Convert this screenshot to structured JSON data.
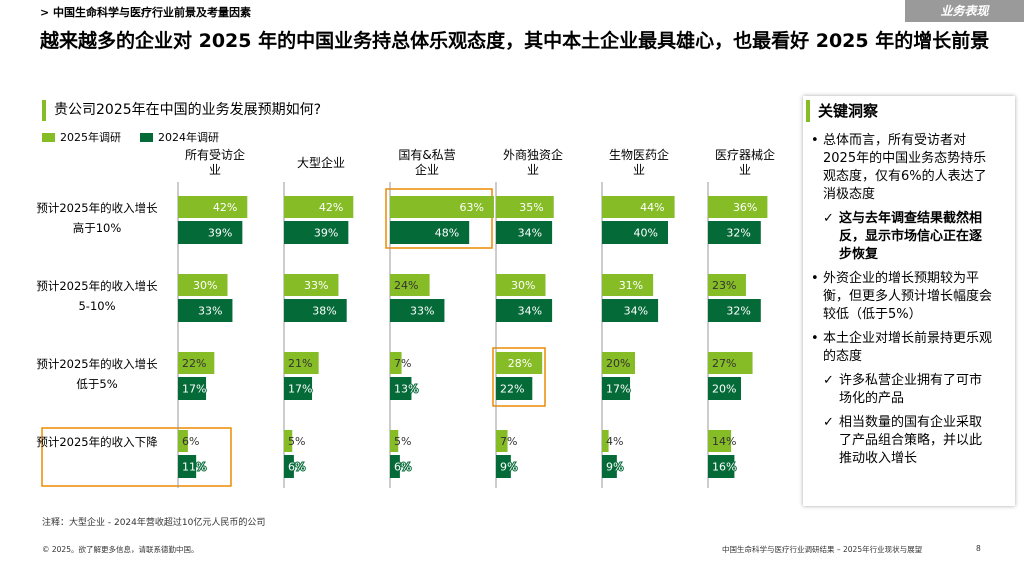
{
  "header": {
    "breadcrumb": "> 中国生命科学与医疗行业前景及考量因素",
    "section": "业务表现"
  },
  "title": "越来越多的企业对 2025 年的中国业务持总体乐观态度，其中本土企业最具雄心，也最看好 2025 年的增长前景",
  "chart_data": {
    "type": "bar",
    "orientation": "horizontal",
    "title": "贵公司2025年在中国的业务发展预期如何?",
    "groups": [
      "所有受访企业",
      "大型企业",
      "国有&私营企业",
      "外商独资企业",
      "生物医药企业",
      "医疗器械企业"
    ],
    "categories": [
      "预计2025年的收入增长高于10%",
      "预计2025年的收入增长5-10%",
      "预计2025年的收入增长低于5%",
      "预计2025年的收入下降"
    ],
    "series": [
      {
        "name": "2025年调研",
        "color": "#86bc25",
        "values": [
          [
            42,
            30,
            22,
            6
          ],
          [
            42,
            33,
            21,
            5
          ],
          [
            63,
            24,
            7,
            5
          ],
          [
            35,
            30,
            28,
            7
          ],
          [
            44,
            31,
            20,
            4
          ],
          [
            36,
            23,
            27,
            14
          ]
        ],
        "value_labels": [
          [
            "42%",
            "30%",
            "22%",
            "6%"
          ],
          [
            "42%",
            "33%",
            "21%",
            "5%"
          ],
          [
            "63%",
            "24%",
            "7%",
            "5%"
          ],
          [
            "35%",
            "30%",
            "28%",
            "7%"
          ],
          [
            "44%",
            "31%",
            "20%",
            "4%"
          ],
          [
            "36%",
            "23%",
            "27%",
            "14%"
          ]
        ]
      },
      {
        "name": "2024年调研",
        "color": "#046a38",
        "values": [
          [
            39,
            33,
            17,
            11
          ],
          [
            39,
            38,
            17,
            6
          ],
          [
            48,
            33,
            13,
            6
          ],
          [
            34,
            34,
            22,
            9
          ],
          [
            40,
            34,
            17,
            9
          ],
          [
            32,
            32,
            20,
            16
          ]
        ],
        "value_labels": [
          [
            "39%",
            "33%",
            "17%",
            "11%"
          ],
          [
            "39%",
            "38%",
            "17%",
            "6%"
          ],
          [
            "48%",
            "33%",
            "13%",
            "6%"
          ],
          [
            "34%",
            "34%",
            "22%",
            "9%"
          ],
          [
            "40%",
            "34%",
            "17%",
            "9%"
          ],
          [
            "32%",
            "32%",
            "20%",
            "16%"
          ]
        ]
      }
    ],
    "note": "注释：大型企业 - 2024年营收超过10亿元人民币的公司"
  },
  "insights": {
    "title": "关键洞察",
    "items": [
      {
        "text": "总体而言，所有受访者对2025年的中国业务态势持乐观态度，仅有6%的人表达了消极态度",
        "level": 1,
        "bold": false
      },
      {
        "text": "这与去年调查结果截然相反，显示市场信心正在逐步恢复",
        "level": 2,
        "bold": true
      },
      {
        "text": "外资企业的增长预期较为平衡，但更多人预计增长幅度会较低（低于5%）",
        "level": 1,
        "bold": false
      },
      {
        "text": "本土企业对增长前景持更乐观的态度",
        "level": 1,
        "bold": false
      },
      {
        "text": "许多私营企业拥有了可市场化的产品",
        "level": 2,
        "bold": false
      },
      {
        "text": "相当数量的国有企业采取了产品组合策略，并以此推动收入增长",
        "level": 2,
        "bold": false
      }
    ]
  },
  "footer": {
    "copyright": "© 2025。欲了解更多信息，请联系德勤中国。",
    "report": "中国生命科学与医疗行业调研结果 – 2025年行业现状与展望",
    "page": "8"
  }
}
